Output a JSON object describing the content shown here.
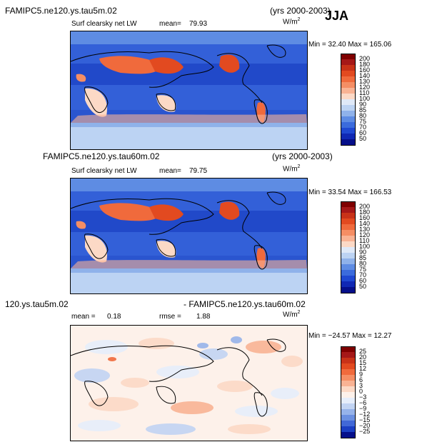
{
  "season": "JJA",
  "units_base": "W/m",
  "units_exp": "2",
  "panels": [
    {
      "id": "p1",
      "title_left": "FAMIPC5.ne120.ys.tau5m.02",
      "title_right": "(yrs 2000-2003)",
      "variable": "Surf clearsky net LW",
      "stat_label": "mean=",
      "stat_value": "79.93",
      "min_max": "Min =  32.40 Max = 165.06",
      "colorbar_labels": [
        "200",
        "180",
        "160",
        "140",
        "130",
        "120",
        "110",
        "100",
        "90",
        "85",
        "80",
        "75",
        "70",
        "60",
        "50"
      ],
      "colorbar_colors": [
        "#7f0000",
        "#a51818",
        "#c83218",
        "#e24a20",
        "#f06a3c",
        "#f58e64",
        "#f9b394",
        "#fcd9c6",
        "#dfe9f8",
        "#bcd3f3",
        "#8fb2ea",
        "#5e8ce3",
        "#3b6bdc",
        "#1f48d1",
        "#1028b4",
        "#050f8a"
      ]
    },
    {
      "id": "p2",
      "title_left": "FAMIPC5.ne120.ys.tau60m.02",
      "title_right": "(yrs 2000-2003)",
      "variable": "Surf clearsky net LW",
      "stat_label": "mean=",
      "stat_value": "79.75",
      "min_max": "Min =  33.54 Max = 166.53",
      "colorbar_labels": [
        "200",
        "180",
        "160",
        "140",
        "130",
        "120",
        "110",
        "100",
        "90",
        "85",
        "80",
        "75",
        "70",
        "60",
        "50"
      ],
      "colorbar_colors": [
        "#7f0000",
        "#a51818",
        "#c83218",
        "#e24a20",
        "#f06a3c",
        "#f58e64",
        "#f9b394",
        "#fcd9c6",
        "#dfe9f8",
        "#bcd3f3",
        "#8fb2ea",
        "#5e8ce3",
        "#3b6bdc",
        "#1f48d1",
        "#1028b4",
        "#050f8a"
      ]
    },
    {
      "id": "p3",
      "title_left": "120.ys.tau5m.02",
      "title_right": "- FAMIPC5.ne120.ys.tau60m.02",
      "stat_label": "mean =",
      "stat_value": "0.18",
      "rmse_label": "rmse =",
      "rmse_value": "1.88",
      "min_max": "Min = −24.57 Max =  12.27",
      "colorbar_labels": [
        "25",
        "20",
        "15",
        "12",
        "9",
        "6",
        "3",
        "0",
        "−3",
        "−6",
        "−9",
        "−12",
        "−15",
        "−20",
        "−25"
      ],
      "colorbar_colors": [
        "#7f0000",
        "#a51818",
        "#c83218",
        "#e24a20",
        "#f06a3c",
        "#f58e64",
        "#f9b394",
        "#fcd9c6",
        "#fdf1ea",
        "#e6eefb",
        "#c2d4f3",
        "#96b3ea",
        "#6b90e1",
        "#4168d7",
        "#1b3fc3",
        "#050f8a"
      ]
    }
  ]
}
